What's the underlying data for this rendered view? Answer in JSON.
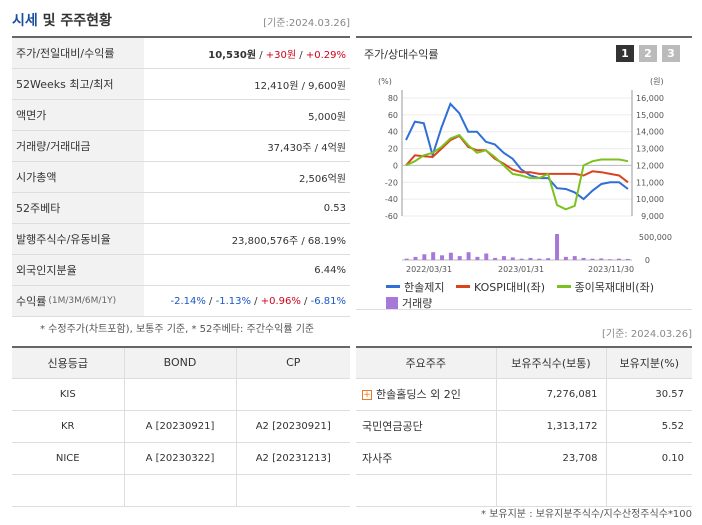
{
  "header": {
    "title_main": "시세",
    "title_rest": " 및 주주현황",
    "date": "[기준:2024.03.26]"
  },
  "summary": {
    "rows": [
      {
        "label": "주가/전일대비/수익률",
        "price": "10,530원",
        "change": "+30원",
        "rate": "+0.29%"
      },
      {
        "label": "52Weeks 최고/최저",
        "value": "12,410원 / 9,600원"
      },
      {
        "label": "액면가",
        "value": "5,000원"
      },
      {
        "label": "거래량/거래대금",
        "value": "37,430주 / 4억원"
      },
      {
        "label": "시가총액",
        "value": "2,506억원"
      },
      {
        "label": "52주베타",
        "value": "0.53"
      },
      {
        "label": "발행주식수/유동비율",
        "value": "23,800,576주 / 68.19%"
      },
      {
        "label": "외국인지분율",
        "value": "6.44%"
      },
      {
        "label": "수익률",
        "label_sub": "(1M/3M/6M/1Y)",
        "r1": "-2.14%",
        "r2": "-1.13%",
        "r3": "+0.96%",
        "r4": "-6.81%"
      }
    ],
    "note": "* 수정주가(차트포함), 보통주 기준, * 52주베타: 주간수익률 기준"
  },
  "chart_panel": {
    "title": "주가/상대수익률",
    "tabs": [
      "1",
      "2",
      "3"
    ],
    "active_tab": "1"
  },
  "chart_data": {
    "type": "line",
    "y_left": {
      "unit": "(%)",
      "ticks": [
        80,
        60,
        40,
        20,
        0,
        -20,
        -40,
        -60
      ],
      "ylim": [
        -60,
        80
      ]
    },
    "y_right": {
      "unit": "(원)",
      "ticks": [
        "16,000",
        "15,000",
        "14,000",
        "13,000",
        "12,000",
        "11,000",
        "10,000",
        "9,000"
      ],
      "ylim": [
        9000,
        16000
      ]
    },
    "volume_axis": {
      "ticks": [
        "500,000",
        "0"
      ]
    },
    "x_ticks": [
      "2022/03/31",
      "2023/01/31",
      "2023/11/30"
    ],
    "series": [
      {
        "name": "한솔제지",
        "color": "#2f6fd6",
        "values": [
          30,
          52,
          50,
          12,
          45,
          73,
          62,
          40,
          40,
          28,
          25,
          15,
          8,
          -5,
          -12,
          -15,
          -15,
          -27,
          -28,
          -32,
          -40,
          -30,
          -22,
          -20,
          -20,
          -28
        ]
      },
      {
        "name": "KOSPI대비(좌)",
        "color": "#d9431e",
        "values": [
          0,
          12,
          11,
          10,
          20,
          30,
          35,
          22,
          18,
          18,
          8,
          2,
          -5,
          -8,
          -8,
          -10,
          -10,
          -10,
          -10,
          -10,
          -12,
          -7,
          -8,
          -10,
          -12,
          -20
        ]
      },
      {
        "name": "종이목재대비(좌)",
        "color": "#7cc21e",
        "values": [
          0,
          5,
          12,
          15,
          22,
          32,
          36,
          24,
          15,
          18,
          10,
          0,
          -10,
          -12,
          -15,
          -15,
          -10,
          -47,
          -52,
          -48,
          0,
          5,
          7,
          7,
          7,
          5
        ]
      }
    ],
    "volume_series": {
      "name": "거래량",
      "color": "#a878d8",
      "values": [
        0.05,
        0.12,
        0.22,
        0.3,
        0.18,
        0.28,
        0.15,
        0.3,
        0.12,
        0.25,
        0.08,
        0.15,
        0.1,
        0.05,
        0.08,
        0.05,
        0.07,
        1.0,
        0.12,
        0.15,
        0.08,
        0.05,
        0.06,
        0.03,
        0.05,
        0.04
      ]
    }
  },
  "date2": "[기준: 2024.03.26]",
  "credit": {
    "headers": [
      "신용등급",
      "BOND",
      "CP"
    ],
    "rows": [
      {
        "agency": "KIS",
        "bond": "",
        "cp": ""
      },
      {
        "agency": "KR",
        "bond": "A [20230921]",
        "cp": "A2 [20230921]"
      },
      {
        "agency": "NICE",
        "bond": "A [20230322]",
        "cp": "A2 [20231213]"
      },
      {
        "agency": "",
        "bond": "",
        "cp": ""
      }
    ]
  },
  "shareholders": {
    "headers": [
      "주요주주",
      "보유주식수(보통)",
      "보유지분(%)"
    ],
    "rows": [
      {
        "name": "한솔홀딩스 외 2인",
        "shares": "7,276,081",
        "pct": "30.57",
        "expand": "+"
      },
      {
        "name": "국민연금공단",
        "shares": "1,313,172",
        "pct": "5.52"
      },
      {
        "name": "자사주",
        "shares": "23,708",
        "pct": "0.10"
      },
      {
        "name": "",
        "shares": "",
        "pct": ""
      }
    ],
    "note": "* 보유지분 : 보유지분주식수/지수산정주식수*100"
  }
}
